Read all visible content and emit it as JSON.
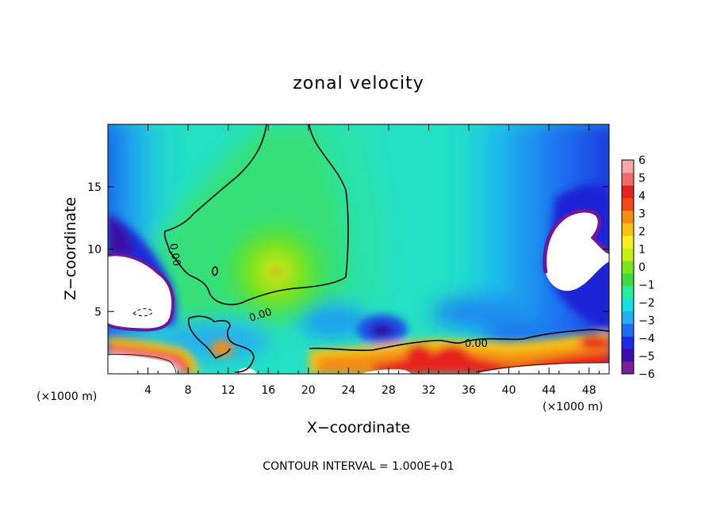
{
  "chart_data": {
    "type": "heatmap",
    "title": "zonal velocity",
    "xlabel": "X−coordinate",
    "ylabel": "Z−coordinate",
    "x_unit_left": "(×1000 m)",
    "x_unit_right": "(×1000 m)",
    "footer": "CONTOUR INTERVAL = 1.000E+01",
    "xlim": [
      0,
      50
    ],
    "ylim": [
      0,
      20
    ],
    "x_ticks": [
      4,
      8,
      12,
      16,
      20,
      24,
      28,
      32,
      36,
      40,
      44,
      48
    ],
    "y_ticks": [
      5,
      10,
      15
    ],
    "colorbar": {
      "range": [
        -6,
        6
      ],
      "ticks": [
        6,
        5,
        4,
        3,
        2,
        1,
        0,
        -1,
        -2,
        -3,
        -4,
        -5,
        -6
      ],
      "tick_labels": [
        "6",
        "5",
        "4",
        "3",
        "2",
        "1",
        "0",
        "−1",
        "−2",
        "−3",
        "−4",
        "−5",
        "−6"
      ],
      "colors": [
        "#7a1f9a",
        "#3b0fa6",
        "#1d2ae6",
        "#1f6ef0",
        "#22aef0",
        "#19e0dc",
        "#26eb9e",
        "#3bdc3b",
        "#7ae61f",
        "#c8ef14",
        "#f5f019",
        "#f5c214",
        "#f58c14",
        "#ef4a1a",
        "#e6201e",
        "#f06a6a",
        "#f5a8a8"
      ]
    },
    "contour_labels": [
      "0.00",
      "0.00",
      "0.00"
    ],
    "features": [
      {
        "kind": "maximum",
        "x": 16.8,
        "z": 8.1,
        "value": 1.5
      },
      {
        "kind": "minimum",
        "x": 28,
        "z": 3.6,
        "value": -5
      },
      {
        "kind": "maximum-band",
        "x_range": [
          28,
          40
        ],
        "z": 1.5,
        "value": 5
      }
    ]
  }
}
